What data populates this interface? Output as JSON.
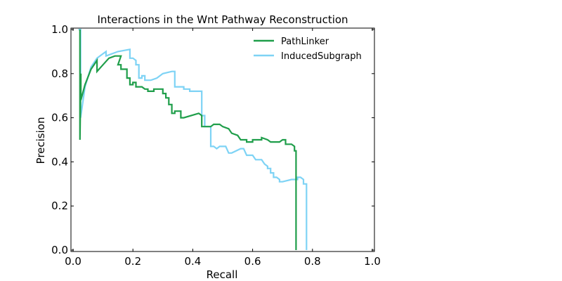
{
  "chart_data": {
    "type": "line",
    "title": "Interactions in the Wnt Pathway Reconstruction",
    "xlabel": "Recall",
    "ylabel": "Precision",
    "xlim": [
      0.0,
      1.0
    ],
    "ylim": [
      0.0,
      1.0
    ],
    "xticks": [
      0.0,
      0.2,
      0.4,
      0.6,
      0.8,
      1.0
    ],
    "yticks": [
      0.0,
      0.2,
      0.4,
      0.6,
      0.8,
      1.0
    ],
    "xtick_labels": [
      "0.0",
      "0.2",
      "0.4",
      "0.6",
      "0.8",
      "1.0"
    ],
    "ytick_labels": [
      "0.0",
      "0.2",
      "0.4",
      "0.6",
      "0.8",
      "1.0"
    ],
    "grid": false,
    "legend_position": "top-right",
    "series": [
      {
        "name": "PathLinker",
        "color": "#1f9e4a",
        "points": [
          [
            0.023,
            1.0
          ],
          [
            0.023,
            0.5
          ],
          [
            0.026,
            0.8
          ],
          [
            0.026,
            0.68
          ],
          [
            0.04,
            0.75
          ],
          [
            0.06,
            0.82
          ],
          [
            0.08,
            0.86
          ],
          [
            0.08,
            0.81
          ],
          [
            0.1,
            0.84
          ],
          [
            0.12,
            0.87
          ],
          [
            0.14,
            0.88
          ],
          [
            0.16,
            0.88
          ],
          [
            0.15,
            0.84
          ],
          [
            0.16,
            0.84
          ],
          [
            0.16,
            0.82
          ],
          [
            0.18,
            0.82
          ],
          [
            0.18,
            0.78
          ],
          [
            0.19,
            0.78
          ],
          [
            0.19,
            0.75
          ],
          [
            0.2,
            0.75
          ],
          [
            0.2,
            0.76
          ],
          [
            0.21,
            0.76
          ],
          [
            0.21,
            0.74
          ],
          [
            0.23,
            0.74
          ],
          [
            0.24,
            0.73
          ],
          [
            0.25,
            0.73
          ],
          [
            0.25,
            0.72
          ],
          [
            0.27,
            0.72
          ],
          [
            0.27,
            0.73
          ],
          [
            0.28,
            0.73
          ],
          [
            0.3,
            0.73
          ],
          [
            0.3,
            0.71
          ],
          [
            0.31,
            0.71
          ],
          [
            0.31,
            0.69
          ],
          [
            0.32,
            0.69
          ],
          [
            0.32,
            0.66
          ],
          [
            0.33,
            0.66
          ],
          [
            0.33,
            0.62
          ],
          [
            0.34,
            0.62
          ],
          [
            0.34,
            0.63
          ],
          [
            0.36,
            0.63
          ],
          [
            0.36,
            0.6
          ],
          [
            0.37,
            0.6
          ],
          [
            0.42,
            0.62
          ],
          [
            0.43,
            0.61
          ],
          [
            0.43,
            0.56
          ],
          [
            0.46,
            0.56
          ],
          [
            0.47,
            0.57
          ],
          [
            0.49,
            0.57
          ],
          [
            0.5,
            0.56
          ],
          [
            0.52,
            0.55
          ],
          [
            0.53,
            0.53
          ],
          [
            0.55,
            0.52
          ],
          [
            0.56,
            0.5
          ],
          [
            0.58,
            0.5
          ],
          [
            0.58,
            0.49
          ],
          [
            0.6,
            0.49
          ],
          [
            0.6,
            0.5
          ],
          [
            0.62,
            0.5
          ],
          [
            0.63,
            0.5
          ],
          [
            0.63,
            0.51
          ],
          [
            0.65,
            0.5
          ],
          [
            0.66,
            0.49
          ],
          [
            0.68,
            0.49
          ],
          [
            0.69,
            0.49
          ],
          [
            0.7,
            0.5
          ],
          [
            0.71,
            0.5
          ],
          [
            0.71,
            0.48
          ],
          [
            0.73,
            0.48
          ],
          [
            0.74,
            0.47
          ],
          [
            0.74,
            0.45
          ],
          [
            0.745,
            0.45
          ],
          [
            0.745,
            0.0
          ]
        ]
      },
      {
        "name": "InducedSubgraph",
        "color": "#7ed3f5",
        "points": [
          [
            0.018,
            1.0
          ],
          [
            0.025,
            1.0
          ],
          [
            0.025,
            0.6
          ],
          [
            0.04,
            0.74
          ],
          [
            0.06,
            0.83
          ],
          [
            0.08,
            0.87
          ],
          [
            0.1,
            0.89
          ],
          [
            0.11,
            0.9
          ],
          [
            0.11,
            0.88
          ],
          [
            0.15,
            0.9
          ],
          [
            0.19,
            0.91
          ],
          [
            0.19,
            0.87
          ],
          [
            0.2,
            0.87
          ],
          [
            0.21,
            0.86
          ],
          [
            0.21,
            0.84
          ],
          [
            0.22,
            0.84
          ],
          [
            0.22,
            0.78
          ],
          [
            0.23,
            0.78
          ],
          [
            0.23,
            0.79
          ],
          [
            0.24,
            0.79
          ],
          [
            0.24,
            0.77
          ],
          [
            0.26,
            0.77
          ],
          [
            0.28,
            0.78
          ],
          [
            0.3,
            0.8
          ],
          [
            0.33,
            0.81
          ],
          [
            0.34,
            0.81
          ],
          [
            0.34,
            0.74
          ],
          [
            0.36,
            0.74
          ],
          [
            0.37,
            0.74
          ],
          [
            0.37,
            0.73
          ],
          [
            0.39,
            0.73
          ],
          [
            0.39,
            0.72
          ],
          [
            0.4,
            0.72
          ],
          [
            0.43,
            0.72
          ],
          [
            0.43,
            0.61
          ],
          [
            0.44,
            0.61
          ],
          [
            0.44,
            0.56
          ],
          [
            0.46,
            0.56
          ],
          [
            0.46,
            0.47
          ],
          [
            0.47,
            0.47
          ],
          [
            0.48,
            0.46
          ],
          [
            0.49,
            0.47
          ],
          [
            0.5,
            0.47
          ],
          [
            0.51,
            0.47
          ],
          [
            0.52,
            0.44
          ],
          [
            0.53,
            0.44
          ],
          [
            0.56,
            0.46
          ],
          [
            0.57,
            0.46
          ],
          [
            0.58,
            0.43
          ],
          [
            0.59,
            0.43
          ],
          [
            0.6,
            0.43
          ],
          [
            0.61,
            0.41
          ],
          [
            0.63,
            0.41
          ],
          [
            0.64,
            0.39
          ],
          [
            0.65,
            0.38
          ],
          [
            0.65,
            0.37
          ],
          [
            0.66,
            0.37
          ],
          [
            0.66,
            0.35
          ],
          [
            0.67,
            0.35
          ],
          [
            0.67,
            0.33
          ],
          [
            0.68,
            0.33
          ],
          [
            0.69,
            0.32
          ],
          [
            0.69,
            0.31
          ],
          [
            0.7,
            0.31
          ],
          [
            0.73,
            0.32
          ],
          [
            0.75,
            0.32
          ],
          [
            0.75,
            0.33
          ],
          [
            0.76,
            0.33
          ],
          [
            0.77,
            0.32
          ],
          [
            0.77,
            0.3
          ],
          [
            0.78,
            0.3
          ],
          [
            0.78,
            0.27
          ],
          [
            0.78,
            0.0
          ]
        ]
      }
    ]
  }
}
